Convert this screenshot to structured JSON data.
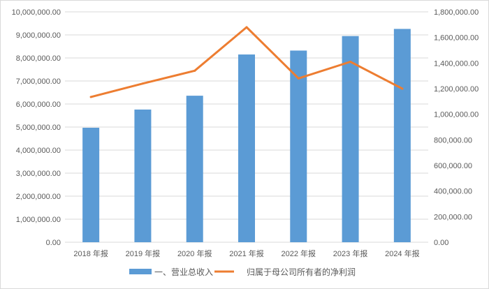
{
  "chart_data": {
    "type": "bar",
    "categories": [
      "2018 年报",
      "2019 年报",
      "2020 年报",
      "2021 年报",
      "2022 年报",
      "2023 年报",
      "2024 年报"
    ],
    "series": [
      {
        "name": "一、营业总收入",
        "type": "bar",
        "axis": "left",
        "color": "#5b9bd5",
        "values": [
          4970000,
          5760000,
          6360000,
          8150000,
          8320000,
          8950000,
          9260000
        ]
      },
      {
        "name": "归属于母公司所有者的净利润",
        "type": "line",
        "axis": "right",
        "color": "#ed7d31",
        "values": [
          1135000,
          1240000,
          1340000,
          1680000,
          1280000,
          1410000,
          1200000
        ]
      }
    ],
    "y_left": {
      "lim": [
        0,
        10000000
      ],
      "ticks": [
        0,
        1000000,
        2000000,
        3000000,
        4000000,
        5000000,
        6000000,
        7000000,
        8000000,
        9000000,
        10000000
      ],
      "tick_labels": [
        "0.00",
        "1,000,000.00",
        "2,000,000.00",
        "3,000,000.00",
        "4,000,000.00",
        "5,000,000.00",
        "6,000,000.00",
        "7,000,000.00",
        "8,000,000.00",
        "9,000,000.00",
        "10,000,000.00"
      ]
    },
    "y_right": {
      "lim": [
        0,
        1800000
      ],
      "ticks": [
        0,
        200000,
        400000,
        600000,
        800000,
        1000000,
        1200000,
        1400000,
        1600000,
        1800000
      ],
      "tick_labels": [
        "0.00",
        "200,000.00",
        "400,000.00",
        "600,000.00",
        "800,000.00",
        "1,000,000.00",
        "1,200,000.00",
        "1,400,000.00",
        "1,600,000.00",
        "1,800,000.00"
      ]
    },
    "title": "",
    "xlabel": "",
    "ylabel": "",
    "grid": true,
    "legend": "bottom-center",
    "gridline_color": "#d9d9d9"
  }
}
